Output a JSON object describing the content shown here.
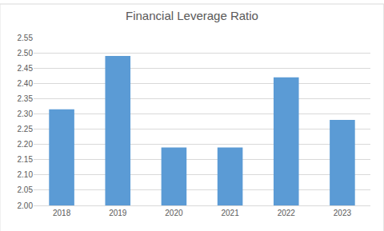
{
  "chart_data": {
    "type": "bar",
    "title": "Financial Leverage Ratio",
    "categories": [
      "2018",
      "2019",
      "2020",
      "2021",
      "2022",
      "2023"
    ],
    "values": [
      2.315,
      2.49,
      2.19,
      2.19,
      2.42,
      2.28
    ],
    "color": "#5b9bd5",
    "ylim": [
      2.0,
      2.55
    ],
    "yticks": [
      {
        "value": 2.0,
        "label": "2.00"
      },
      {
        "value": 2.05,
        "label": "2.05"
      },
      {
        "value": 2.1,
        "label": "2.10"
      },
      {
        "value": 2.15,
        "label": "2.15"
      },
      {
        "value": 2.2,
        "label": "2.20"
      },
      {
        "value": 2.25,
        "label": "2.25"
      },
      {
        "value": 2.3,
        "label": "2.30"
      },
      {
        "value": 2.35,
        "label": "2.35"
      },
      {
        "value": 2.4,
        "label": "2.40"
      },
      {
        "value": 2.45,
        "label": "2.45"
      },
      {
        "value": 2.5,
        "label": "2.50"
      },
      {
        "value": 2.55,
        "label": "2.55"
      }
    ],
    "grid": true
  }
}
